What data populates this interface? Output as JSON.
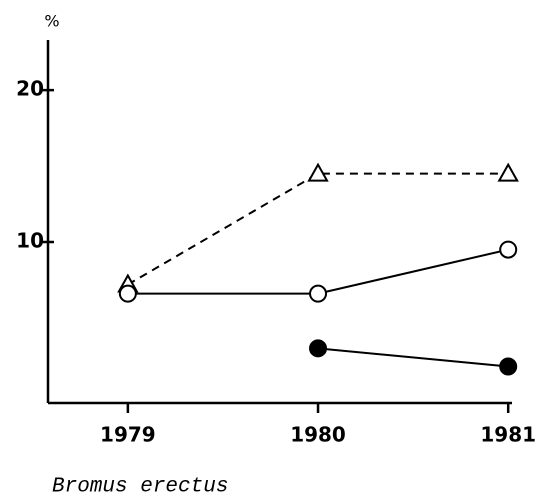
{
  "chart_data": {
    "type": "line",
    "ylabel": "%",
    "caption": "Bromus erectus",
    "x": [
      1979,
      1980,
      1981
    ],
    "xlim": [
      1978.58,
      1981.02
    ],
    "xticks": [
      1979,
      1980,
      1981
    ],
    "ylim": [
      -0.6,
      23.3
    ],
    "yticks": [
      10,
      20
    ],
    "series": [
      {
        "color": "#000000",
        "dash": true,
        "marker": "triangle-open",
        "values": [
          7.2,
          14.5,
          14.5
        ]
      },
      {
        "color": "#000000",
        "dash": false,
        "marker": "circle-open",
        "values": [
          6.6,
          6.6,
          9.5
        ]
      },
      {
        "color": "#000000",
        "dash": false,
        "marker": "circle-filled",
        "values": [
          null,
          3.0,
          1.8
        ]
      }
    ]
  }
}
